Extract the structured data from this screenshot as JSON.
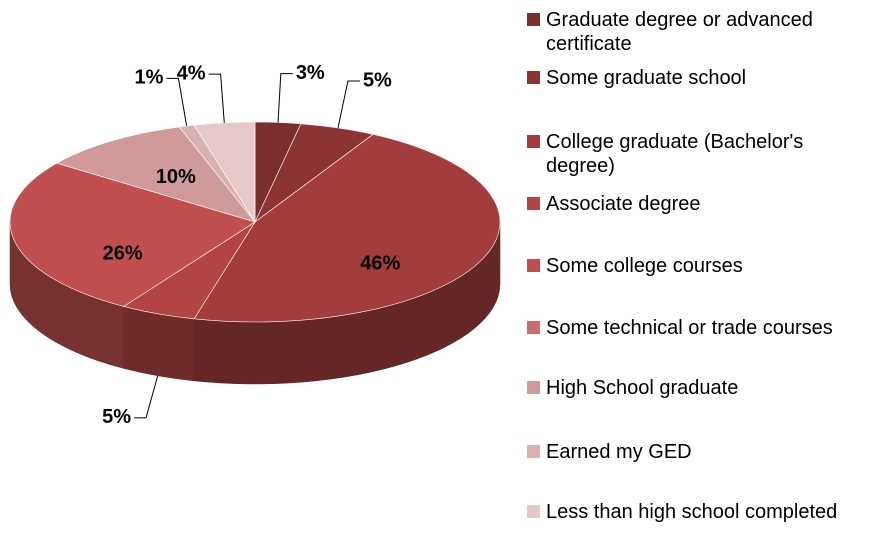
{
  "chart_data": {
    "type": "pie",
    "categories": [
      "Graduate degree or advanced certificate",
      "Some graduate school",
      "College graduate (Bachelor's degree)",
      "Associate degree",
      "Some college courses",
      "Some technical or trade courses",
      "High School graduate",
      "Earned my GED",
      "Less than high school completed"
    ],
    "values": [
      3,
      5,
      46,
      5,
      26,
      0,
      10,
      1,
      4
    ],
    "value_labels": [
      "3%",
      "5%",
      "46%",
      "5%",
      "26%",
      null,
      "10%",
      "1%",
      "4%"
    ],
    "colors": [
      "#7b2e2e",
      "#8c3434",
      "#a33d3d",
      "#b34444",
      "#c14f4f",
      "#c76f6f",
      "#d09a9a",
      "#dbb0b0",
      "#e6c8c8"
    ],
    "legend": "right"
  }
}
